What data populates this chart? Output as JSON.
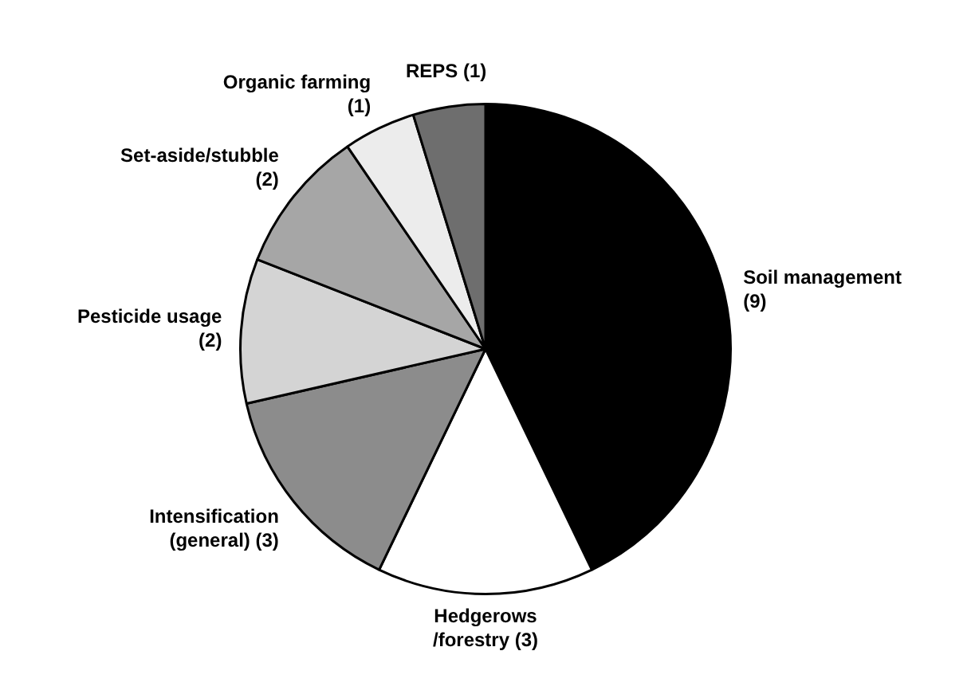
{
  "chart_data": {
    "type": "pie",
    "categories": [
      "Soil management",
      "Hedgerows /forestry",
      "Intensification (general)",
      "Pesticide usage",
      "Set-aside/stubble",
      "Organic farming",
      "REPS"
    ],
    "values": [
      9,
      3,
      3,
      2,
      2,
      1,
      1
    ],
    "value_labels": [
      "(9)",
      "(3)",
      "(3)",
      "(2)",
      "(2)",
      "(1)",
      "(1)"
    ],
    "colors": [
      "#000000",
      "#ffffff",
      "#8c8c8c",
      "#d4d4d4",
      "#a6a6a6",
      "#ececec",
      "#6e6e6e"
    ],
    "legend": false
  }
}
